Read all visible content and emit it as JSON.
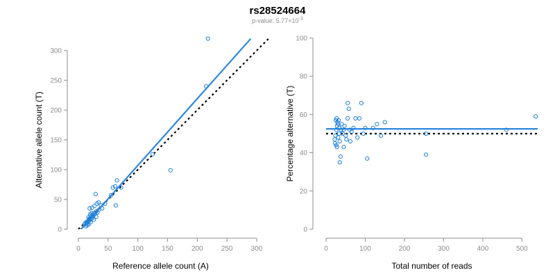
{
  "figure": {
    "title": "rs28524664",
    "subtitle_prefix": "p-value: 5.77×10",
    "subtitle_exponent": "-3"
  },
  "chart_data": [
    {
      "type": "scatter",
      "xlabel": "Reference allele count (A)",
      "ylabel": "Alternative allele count (T)",
      "xlim": [
        0,
        300
      ],
      "ylim": [
        0,
        300
      ],
      "xticks": [
        0,
        50,
        100,
        150,
        200,
        250,
        300
      ],
      "yticks": [
        0,
        50,
        100,
        150,
        200,
        250,
        300
      ],
      "grid": false,
      "points": [
        [
          14,
          10
        ],
        [
          16,
          12
        ],
        [
          18,
          14
        ],
        [
          20,
          16
        ],
        [
          19,
          18
        ],
        [
          22,
          20
        ],
        [
          25,
          22
        ],
        [
          24,
          24
        ],
        [
          28,
          26
        ],
        [
          17,
          20
        ],
        [
          21,
          22
        ],
        [
          24,
          19
        ],
        [
          26,
          27
        ],
        [
          30,
          30
        ],
        [
          32,
          28
        ],
        [
          35,
          33
        ],
        [
          15,
          13
        ],
        [
          18,
          17
        ],
        [
          20,
          25
        ],
        [
          22,
          27
        ],
        [
          19,
          35
        ],
        [
          23,
          36
        ],
        [
          27,
          39
        ],
        [
          31,
          43
        ],
        [
          34,
          45
        ],
        [
          29,
          59
        ],
        [
          38,
          40
        ],
        [
          40,
          35
        ],
        [
          45,
          43
        ],
        [
          55,
          57
        ],
        [
          58,
          70
        ],
        [
          62,
          72
        ],
        [
          65,
          82
        ],
        [
          72,
          70
        ],
        [
          63,
          40
        ],
        [
          10,
          8
        ],
        [
          13,
          5
        ],
        [
          15,
          7
        ],
        [
          12,
          11
        ],
        [
          17,
          8
        ],
        [
          21,
          12
        ],
        [
          26,
          16
        ],
        [
          30,
          21
        ],
        [
          155,
          99
        ],
        [
          125,
          126
        ],
        [
          215,
          240
        ],
        [
          218,
          320
        ]
      ],
      "fit_line": [
        [
          0,
          -5
        ],
        [
          290,
          320
        ]
      ],
      "reference_line": [
        [
          0,
          0
        ],
        [
          320,
          320
        ]
      ]
    },
    {
      "type": "scatter",
      "xlabel": "Total number of reads",
      "ylabel": "Percentage alternative (T)",
      "xlim": [
        0,
        540
      ],
      "ylim": [
        0,
        100
      ],
      "xticks": [
        0,
        100,
        200,
        300,
        400,
        500
      ],
      "yticks": [
        0,
        20,
        40,
        60,
        80,
        100
      ],
      "grid": false,
      "points": [
        [
          22,
          47
        ],
        [
          24,
          49
        ],
        [
          26,
          52
        ],
        [
          28,
          54
        ],
        [
          30,
          55
        ],
        [
          25,
          57
        ],
        [
          27,
          58
        ],
        [
          29,
          56
        ],
        [
          32,
          57
        ],
        [
          34,
          53
        ],
        [
          23,
          45
        ],
        [
          26,
          44
        ],
        [
          28,
          43
        ],
        [
          31,
          48
        ],
        [
          33,
          50
        ],
        [
          35,
          46
        ],
        [
          38,
          52
        ],
        [
          40,
          55
        ],
        [
          42,
          50
        ],
        [
          45,
          52
        ],
        [
          47,
          54
        ],
        [
          50,
          49
        ],
        [
          52,
          47
        ],
        [
          55,
          58
        ],
        [
          58,
          63
        ],
        [
          60,
          52
        ],
        [
          62,
          46
        ],
        [
          65,
          51
        ],
        [
          70,
          53
        ],
        [
          75,
          58
        ],
        [
          80,
          48
        ],
        [
          85,
          58
        ],
        [
          90,
          66
        ],
        [
          95,
          50
        ],
        [
          100,
          53
        ],
        [
          105,
          37
        ],
        [
          55,
          66
        ],
        [
          45,
          43
        ],
        [
          37,
          38
        ],
        [
          35,
          35
        ],
        [
          120,
          53
        ],
        [
          130,
          55
        ],
        [
          140,
          49
        ],
        [
          150,
          56
        ],
        [
          255,
          39
        ],
        [
          255,
          50
        ],
        [
          460,
          52
        ],
        [
          535,
          59
        ]
      ],
      "fit_line": [
        [
          0,
          52.5
        ],
        [
          540,
          52.5
        ]
      ],
      "reference_line": [
        [
          0,
          50
        ],
        [
          540,
          50
        ]
      ]
    }
  ]
}
